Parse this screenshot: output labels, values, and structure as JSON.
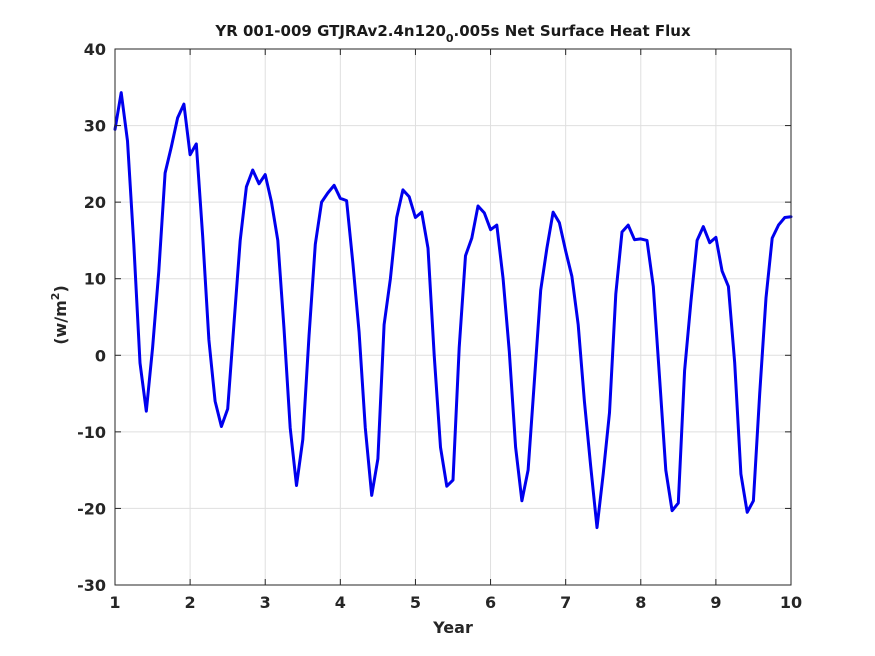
{
  "chart_data": {
    "type": "line",
    "title_main": "YR 001-009 GTJRAv2.4n120",
    "title_sub": "0",
    "title_tail": ".005s Net Surface Heat Flux",
    "xlabel": "Year",
    "ylabel_main": "(w/m",
    "ylabel_sup": "2",
    "ylabel_tail": ")",
    "xlim": [
      1,
      10
    ],
    "ylim": [
      -30,
      40
    ],
    "xticks": [
      1,
      2,
      3,
      4,
      5,
      6,
      7,
      8,
      9,
      10
    ],
    "yticks": [
      -30,
      -20,
      -10,
      0,
      10,
      20,
      30,
      40
    ],
    "grid": true,
    "series_color": "#0000ee",
    "series": [
      {
        "x": [
          1.0,
          1.083,
          1.167,
          1.25,
          1.333,
          1.417,
          1.5,
          1.583,
          1.667,
          1.75,
          1.833,
          1.917,
          2.0,
          2.083,
          2.167,
          2.25,
          2.333,
          2.417,
          2.5,
          2.583,
          2.667,
          2.75,
          2.833,
          2.917,
          3.0,
          3.083,
          3.167,
          3.25,
          3.333,
          3.417,
          3.5,
          3.583,
          3.667,
          3.75,
          3.833,
          3.917,
          4.0,
          4.083,
          4.167,
          4.25,
          4.333,
          4.417,
          4.5,
          4.583,
          4.667,
          4.75,
          4.833,
          4.917,
          5.0,
          5.083,
          5.167,
          5.25,
          5.333,
          5.417,
          5.5,
          5.583,
          5.667,
          5.75,
          5.833,
          5.917,
          6.0,
          6.083,
          6.167,
          6.25,
          6.333,
          6.417,
          6.5,
          6.583,
          6.667,
          6.75,
          6.833,
          6.917,
          7.0,
          7.083,
          7.167,
          7.25,
          7.333,
          7.417,
          7.5,
          7.583,
          7.667,
          7.75,
          7.833,
          7.917,
          8.0,
          8.083,
          8.167,
          8.25,
          8.333,
          8.417,
          8.5,
          8.583,
          8.667,
          8.75,
          8.833,
          8.917,
          9.0,
          9.083,
          9.167,
          9.25,
          9.333,
          9.417,
          9.5,
          9.583,
          9.667,
          9.75,
          9.833,
          9.917,
          10.0
        ],
        "y": [
          29.5,
          34.3,
          28.0,
          14.5,
          -1.0,
          -7.3,
          1.0,
          11.0,
          23.8,
          27.2,
          31.0,
          32.8,
          26.2,
          27.6,
          15.5,
          2.0,
          -6.0,
          -9.3,
          -7.0,
          4.0,
          15.0,
          22.0,
          24.2,
          22.4,
          23.6,
          20.0,
          15.0,
          3.5,
          -9.5,
          -17.0,
          -11.0,
          2.5,
          14.5,
          20.0,
          21.2,
          22.2,
          20.5,
          20.2,
          12.0,
          3.0,
          -9.5,
          -18.3,
          -13.5,
          4.0,
          10.0,
          18.0,
          21.6,
          20.7,
          18.0,
          18.7,
          14.0,
          0.0,
          -12.0,
          -17.1,
          -16.3,
          1.0,
          13.0,
          15.3,
          19.5,
          18.6,
          16.4,
          17.0,
          10.0,
          0.5,
          -12.0,
          -19.0,
          -15.0,
          -3.5,
          8.5,
          14.0,
          18.7,
          17.3,
          13.6,
          10.3,
          4.0,
          -6.0,
          -14.5,
          -22.5,
          -15.5,
          -7.5,
          8.0,
          16.1,
          17.0,
          15.1,
          15.2,
          15.0,
          9.0,
          -3.0,
          -15.0,
          -20.3,
          -19.3,
          -2.0,
          7.0,
          15.0,
          16.8,
          14.7,
          15.4,
          11.0,
          9.0,
          -1.0,
          -15.5,
          -20.5,
          -19.0,
          -5.0,
          7.5,
          15.3,
          17.0,
          18.0,
          18.1
        ]
      }
    ]
  }
}
